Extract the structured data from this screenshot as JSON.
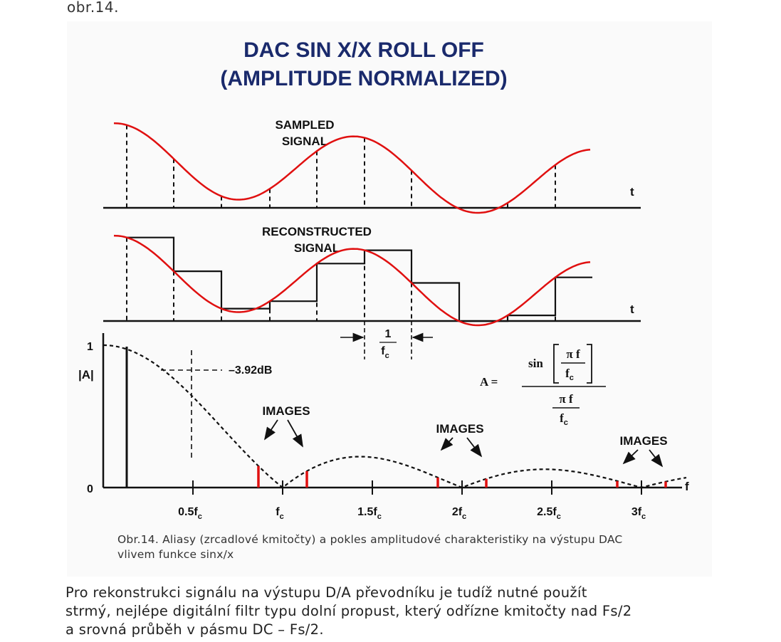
{
  "header": {
    "figure_ref": "obr.14."
  },
  "figure": {
    "title_line1": "DAC SIN X/X ROLL OFF",
    "title_line2": "(AMPLITUDE NORMALIZED)",
    "sampled": {
      "label_line1": "SAMPLED",
      "label_line2": "SIGNAL",
      "axis_label": "t"
    },
    "reconstructed": {
      "label_line1": "RECONSTRUCTED",
      "label_line2": "SIGNAL",
      "axis_label": "t",
      "period_numerator": "1",
      "period_denominator": "f",
      "period_denominator_sub": "c"
    },
    "spectrum": {
      "y_top_label": "1",
      "y_bottom_label": "0",
      "y_axis_label": "|A|",
      "x_axis_label": "f",
      "db_label": "–3.92dB",
      "images_labels": [
        "IMAGES",
        "IMAGES",
        "IMAGES"
      ],
      "x_ticks": [
        {
          "main": "0.5f",
          "sub": "c"
        },
        {
          "main": "f",
          "sub": "c"
        },
        {
          "main": "1.5f",
          "sub": "c"
        },
        {
          "main": "2f",
          "sub": "c"
        },
        {
          "main": "2.5f",
          "sub": "c"
        },
        {
          "main": "3f",
          "sub": "c"
        }
      ]
    },
    "formula": {
      "lhs": "A =",
      "sin": "sin",
      "pi_f": "π f",
      "f": "f",
      "sub": "c"
    },
    "colors": {
      "signal": "#e01010",
      "title": "#1a2a6c",
      "image_lines": "#e01010",
      "ink": "#111111"
    }
  },
  "caption": {
    "line1": "Obr.14. Aliasy (zrcadlové kmitočty) a pokles amplitudové charakteristiky na výstupu DAC",
    "line2": "vlivem funkce sinx/x"
  },
  "body": {
    "line1": "Pro rekonstrukci signálu na výstupu D/A převodníku je tudíž nutné použít",
    "line2": "strmý, nejlépe digitální filtr typu dolní propust, který odřízne kmitočty nad Fs/2",
    "line3": "a srovná průběh v pásmu DC – Fs/2."
  }
}
